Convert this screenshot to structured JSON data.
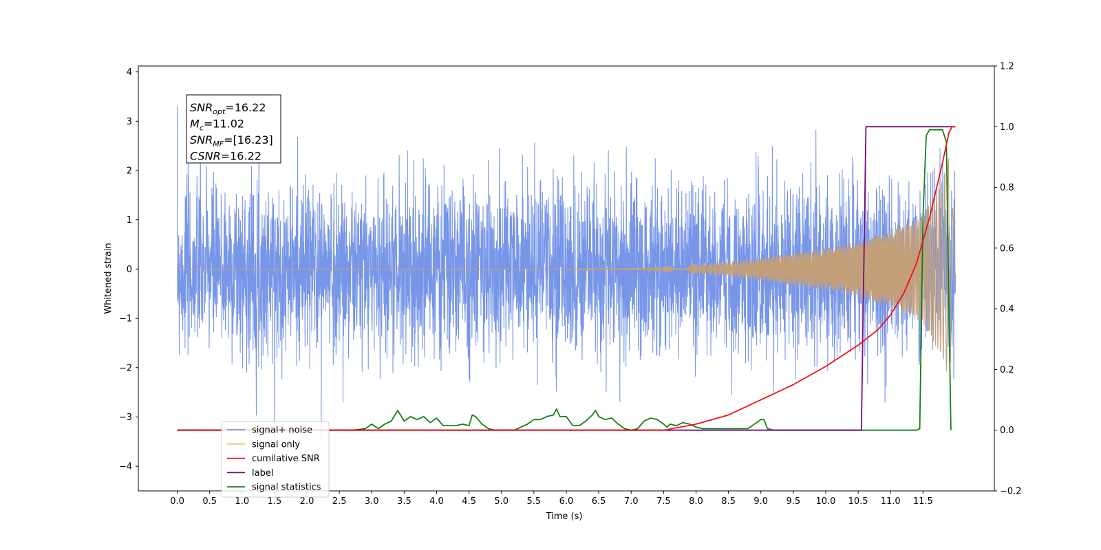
{
  "chart_data": {
    "type": "line",
    "title": "",
    "xlabel": "Time (s)",
    "ylabel_left": "Whitened strain",
    "ylabel_right": "",
    "xlim": [
      -0.6,
      12.6
    ],
    "ylim_left": [
      -4.5,
      4.12
    ],
    "ylim_right": [
      -0.2,
      1.2
    ],
    "x_ticks": [
      "0.0",
      "0.5",
      "1.0",
      "1.5",
      "2.0",
      "2.5",
      "3.0",
      "3.5",
      "4.0",
      "4.5",
      "5.0",
      "5.5",
      "6.0",
      "6.5",
      "7.0",
      "7.5",
      "8.0",
      "8.5",
      "9.0",
      "9.5",
      "10.0",
      "10.5",
      "11.0",
      "11.5"
    ],
    "y_ticks_left": [
      "−4",
      "−3",
      "−2",
      "−1",
      "0",
      "1",
      "2",
      "3",
      "4"
    ],
    "y_ticks_right": [
      "−0.2",
      "0.0",
      "0.2",
      "0.4",
      "0.6",
      "0.8",
      "1.0",
      "1.2"
    ],
    "grid": false,
    "legend_position": "lower-left",
    "colors": {
      "signal_noise": "#7896e8",
      "signal_only": "#c4a07a",
      "signal_only_legend": "#ffc070",
      "cumulative_snr": "#ee1111",
      "label": "#7b0a7b",
      "signal_statistics": "#108010"
    },
    "annotation": [
      {
        "base": "SNR",
        "sub": "opt",
        "value": "=16.22"
      },
      {
        "base": "M",
        "sub": "c",
        "value": "=11.02"
      },
      {
        "base": "SNR",
        "sub": "MF",
        "value": "=[16.23]"
      },
      {
        "base": "CSNR",
        "sub": "",
        "value": "=16.22"
      }
    ],
    "series": [
      {
        "name": "signal+ noise",
        "axis": "left",
        "kind": "noise",
        "x_range": [
          0.0,
          12.0
        ],
        "typical_amplitude": 1.7,
        "peak_max": 3.7,
        "peak_min": -4.1
      },
      {
        "name": "signal only",
        "axis": "left",
        "kind": "chirp",
        "x_range": [
          0.0,
          12.0
        ],
        "envelope": [
          [
            0,
            0.0
          ],
          [
            6,
            0.0
          ],
          [
            7,
            0.02
          ],
          [
            7.5,
            0.05
          ],
          [
            8,
            0.1
          ],
          [
            8.5,
            0.15
          ],
          [
            9,
            0.22
          ],
          [
            9.5,
            0.32
          ],
          [
            10,
            0.42
          ],
          [
            10.5,
            0.55
          ],
          [
            11,
            0.75
          ],
          [
            11.5,
            1.1
          ],
          [
            11.8,
            1.8
          ],
          [
            11.9,
            2.3
          ],
          [
            11.96,
            1.2
          ],
          [
            12,
            0.1
          ]
        ]
      },
      {
        "name": "cumilative SNR",
        "axis": "right",
        "x": [
          0,
          7.5,
          8,
          8.5,
          9,
          9.5,
          10,
          10.5,
          10.8,
          11,
          11.2,
          11.4,
          11.6,
          11.8,
          11.9,
          11.95,
          12
        ],
        "y": [
          0,
          0,
          0.02,
          0.05,
          0.1,
          0.15,
          0.21,
          0.28,
          0.33,
          0.38,
          0.45,
          0.55,
          0.7,
          0.88,
          0.98,
          1.0,
          1.0
        ]
      },
      {
        "name": "label",
        "axis": "right",
        "x": [
          0,
          10.55,
          10.62,
          11.99,
          12.0
        ],
        "y": [
          0,
          0,
          1,
          1,
          1
        ]
      },
      {
        "name": "signal statistics",
        "axis": "right",
        "x": [
          0,
          2.7,
          2.9,
          3.0,
          3.1,
          3.2,
          3.3,
          3.4,
          3.5,
          3.6,
          3.7,
          3.8,
          3.9,
          4.0,
          4.1,
          4.2,
          4.3,
          4.4,
          4.5,
          4.55,
          4.6,
          4.7,
          4.8,
          4.9,
          5.0,
          5.1,
          5.2,
          5.3,
          5.4,
          5.5,
          5.6,
          5.7,
          5.8,
          5.85,
          5.9,
          6.0,
          6.1,
          6.2,
          6.3,
          6.4,
          6.45,
          6.5,
          6.6,
          6.7,
          6.8,
          6.9,
          7.0,
          7.1,
          7.2,
          7.3,
          7.4,
          7.5,
          7.55,
          7.6,
          7.7,
          7.8,
          7.9,
          8.0,
          8.1,
          8.5,
          8.8,
          9.0,
          9.05,
          9.1,
          9.2,
          9.4,
          11.4,
          11.45,
          11.5,
          11.55,
          11.6,
          11.7,
          11.8,
          11.86,
          11.9,
          11.93
        ],
        "y": [
          0,
          0,
          0.005,
          0.02,
          0.005,
          0.02,
          0.03,
          0.065,
          0.03,
          0.045,
          0.035,
          0.045,
          0.025,
          0.04,
          0.015,
          0.015,
          0.015,
          0.02,
          0.015,
          0.05,
          0.045,
          0.02,
          0.005,
          0,
          0,
          0,
          0,
          0.01,
          0.02,
          0.035,
          0.035,
          0.045,
          0.05,
          0.07,
          0.045,
          0.045,
          0.015,
          0.015,
          0.03,
          0.05,
          0.065,
          0.045,
          0.035,
          0.04,
          0.02,
          0.005,
          0,
          0.005,
          0.03,
          0.04,
          0.035,
          0.02,
          0.01,
          0.02,
          0.015,
          0.025,
          0.02,
          0.01,
          0.005,
          0.005,
          0.005,
          0.035,
          0.035,
          0.005,
          0,
          0,
          0,
          0.005,
          0.7,
          0.97,
          0.99,
          0.99,
          0.99,
          0.95,
          0.4,
          0
        ]
      }
    ]
  }
}
